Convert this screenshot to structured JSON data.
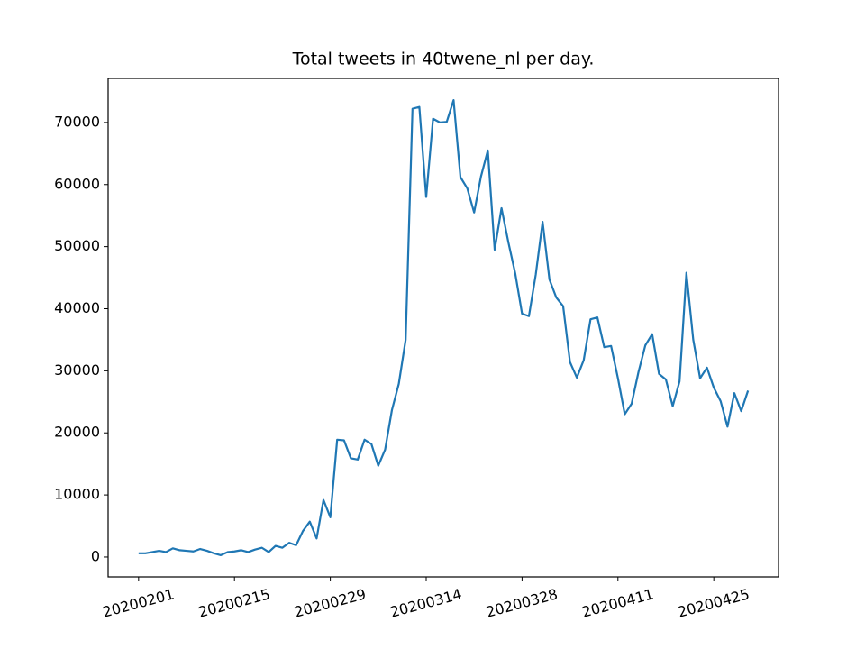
{
  "chart_data": {
    "type": "line",
    "title": "Total tweets in 40twene_nl per day.",
    "categories": [
      "20200201",
      "20200202",
      "20200203",
      "20200204",
      "20200205",
      "20200206",
      "20200207",
      "20200208",
      "20200209",
      "20200210",
      "20200211",
      "20200212",
      "20200213",
      "20200214",
      "20200215",
      "20200216",
      "20200217",
      "20200218",
      "20200219",
      "20200220",
      "20200221",
      "20200222",
      "20200223",
      "20200224",
      "20200225",
      "20200226",
      "20200227",
      "20200228",
      "20200229",
      "20200301",
      "20200302",
      "20200303",
      "20200304",
      "20200305",
      "20200306",
      "20200307",
      "20200308",
      "20200309",
      "20200310",
      "20200311",
      "20200312",
      "20200313",
      "20200314",
      "20200315",
      "20200316",
      "20200317",
      "20200318",
      "20200319",
      "20200320",
      "20200321",
      "20200322",
      "20200323",
      "20200324",
      "20200325",
      "20200326",
      "20200327",
      "20200328",
      "20200329",
      "20200330",
      "20200331",
      "20200401",
      "20200402",
      "20200403",
      "20200404",
      "20200405",
      "20200406",
      "20200407",
      "20200408",
      "20200409",
      "20200410",
      "20200411",
      "20200412",
      "20200413",
      "20200414",
      "20200415",
      "20200416",
      "20200417",
      "20200418",
      "20200419",
      "20200420",
      "20200421",
      "20200422",
      "20200423",
      "20200424",
      "20200425",
      "20200426",
      "20200427",
      "20200428",
      "20200429",
      "20200430"
    ],
    "series": [
      {
        "color": "#1f77b4",
        "values": [
          600,
          600,
          800,
          1000,
          800,
          1400,
          1100,
          1000,
          900,
          1300,
          1000,
          600,
          300,
          800,
          900,
          1100,
          800,
          1200,
          1500,
          800,
          1800,
          1500,
          2300,
          1900,
          4200,
          5700,
          3000,
          9200,
          6400,
          18900,
          18800,
          15900,
          15700,
          18900,
          18200,
          14700,
          17300,
          23700,
          27900,
          35000,
          72200,
          72500,
          58000,
          70600,
          70000,
          70100,
          73600,
          61200,
          59400,
          55500,
          61300,
          65500,
          49500,
          56200,
          50700,
          45700,
          39200,
          38800,
          45500,
          54000,
          44700,
          41800,
          40400,
          31400,
          28900,
          31700,
          38300,
          38600,
          33800,
          34000,
          28800,
          23000,
          24700,
          29800,
          34100,
          35900,
          29500,
          28600,
          24300,
          28300,
          45800,
          35000,
          28800,
          30500,
          27300,
          25100,
          21000,
          26400,
          23500,
          26800
        ]
      }
    ],
    "xticks": [
      "20200201",
      "20200215",
      "20200229",
      "20200314",
      "20200328",
      "20200411",
      "20200425"
    ],
    "ylim": [
      -3200,
      77100
    ],
    "yticks": [
      0,
      10000,
      20000,
      30000,
      40000,
      50000,
      60000,
      70000
    ]
  }
}
